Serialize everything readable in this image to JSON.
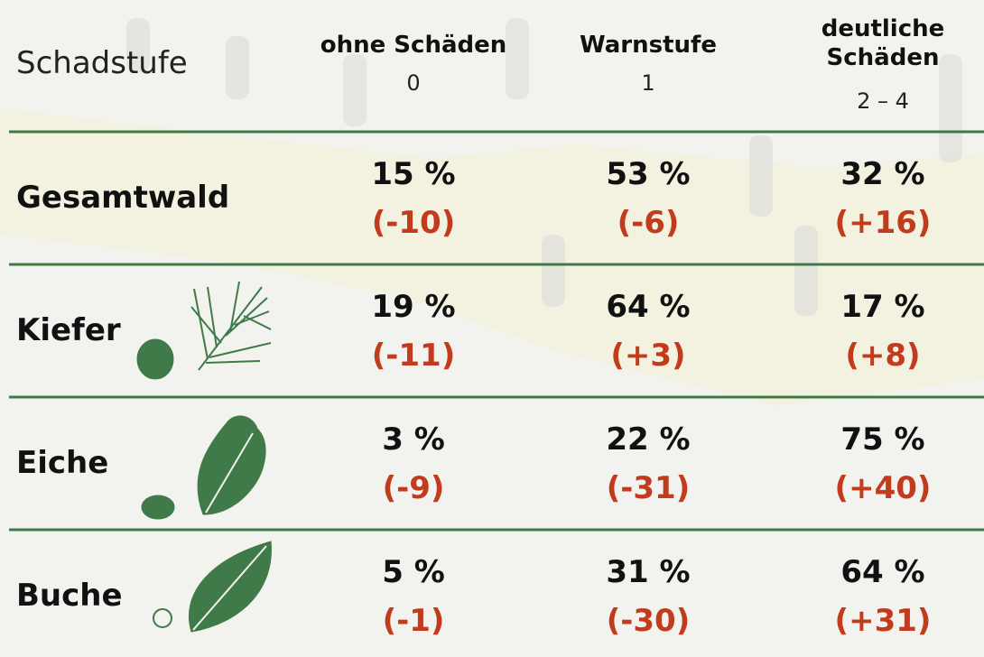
{
  "table": {
    "header": {
      "label": "Schadstufe",
      "columns": [
        {
          "title": "ohne Schäden",
          "code": "0"
        },
        {
          "title": "Warnstufe",
          "code": "1"
        },
        {
          "title": "deutliche Schäden",
          "code": "2 – 4"
        }
      ]
    },
    "rows": [
      {
        "label": "Gesamtwald",
        "cells": [
          {
            "share": "15 %",
            "change": "(-10)"
          },
          {
            "share": "53 %",
            "change": "(-6)"
          },
          {
            "share": "32 %",
            "change": "(+16)"
          }
        ]
      },
      {
        "label": "Kiefer",
        "cells": [
          {
            "share": "19 %",
            "change": "(-11)"
          },
          {
            "share": "64 %",
            "change": "(+3)"
          },
          {
            "share": "17 %",
            "change": "(+8)"
          }
        ]
      },
      {
        "label": "Eiche",
        "cells": [
          {
            "share": "3 %",
            "change": "(-9)"
          },
          {
            "share": "22 %",
            "change": "(-31)"
          },
          {
            "share": "75 %",
            "change": "(+40)"
          }
        ]
      },
      {
        "label": "Buche",
        "cells": [
          {
            "share": "5 %",
            "change": "(-1)"
          },
          {
            "share": "31 %",
            "change": "(-30)"
          },
          {
            "share": "64 %",
            "change": "(+31)"
          }
        ]
      }
    ]
  }
}
